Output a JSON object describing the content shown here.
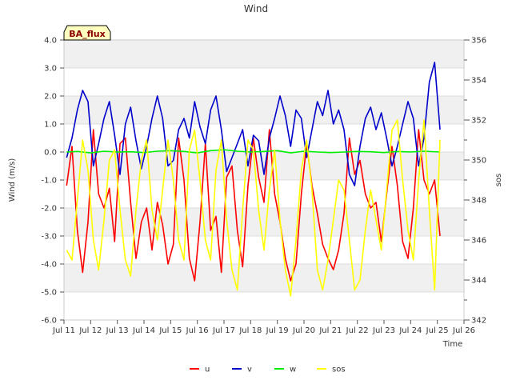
{
  "chart_data": {
    "type": "line",
    "title": "Wind",
    "badge": "BA_flux",
    "xlabel": "Time",
    "ylabel": "Wind (m/s)",
    "y2label": "sos",
    "xlim": [
      11,
      26
    ],
    "ylim": [
      -6,
      4
    ],
    "y2lim": [
      342,
      356
    ],
    "grid": true,
    "legend_position": "bottom-center",
    "x_ticks": [
      {
        "v": 11,
        "label": "Jul 11"
      },
      {
        "v": 12,
        "label": "Jul 12"
      },
      {
        "v": 13,
        "label": "Jul 13"
      },
      {
        "v": 14,
        "label": "Jul 14"
      },
      {
        "v": 15,
        "label": "Jul 15"
      },
      {
        "v": 16,
        "label": "Jul 16"
      },
      {
        "v": 17,
        "label": "Jul 17"
      },
      {
        "v": 18,
        "label": "Jul 18"
      },
      {
        "v": 19,
        "label": "Jul 19"
      },
      {
        "v": 20,
        "label": "Jul 20"
      },
      {
        "v": 21,
        "label": "Jul 21"
      },
      {
        "v": 22,
        "label": "Jul 22"
      },
      {
        "v": 23,
        "label": "Jul 23"
      },
      {
        "v": 24,
        "label": "Jul 24"
      },
      {
        "v": 25,
        "label": "Jul 25"
      },
      {
        "v": 26,
        "label": "Jul 26"
      }
    ],
    "y_ticks": [
      {
        "v": 4,
        "label": "4.0"
      },
      {
        "v": 3,
        "label": "3.0"
      },
      {
        "v": 2,
        "label": "2.0"
      },
      {
        "v": 1,
        "label": "1.0"
      },
      {
        "v": 0,
        "label": "0.0"
      },
      {
        "v": -1,
        "label": "-1.0"
      },
      {
        "v": -2,
        "label": "-2.0"
      },
      {
        "v": -3,
        "label": "-3.0"
      },
      {
        "v": -4,
        "label": "-4.0"
      },
      {
        "v": -5,
        "label": "-5.0"
      },
      {
        "v": -6,
        "label": "-6.0"
      }
    ],
    "y2_ticks": [
      {
        "v": 356,
        "label": "356"
      },
      {
        "v": 354,
        "label": "354"
      },
      {
        "v": 352,
        "label": "352"
      },
      {
        "v": 350,
        "label": "350"
      },
      {
        "v": 348,
        "label": "348"
      },
      {
        "v": 346,
        "label": "346"
      },
      {
        "v": 344,
        "label": "344"
      },
      {
        "v": 342,
        "label": "342"
      }
    ],
    "series": [
      {
        "name": "u",
        "color": "#ff0000",
        "axis": "left",
        "x": [
          11.1,
          11.3,
          11.5,
          11.7,
          11.9,
          12.1,
          12.3,
          12.5,
          12.7,
          12.9,
          13.1,
          13.3,
          13.5,
          13.7,
          13.9,
          14.1,
          14.3,
          14.5,
          14.7,
          14.9,
          15.1,
          15.3,
          15.5,
          15.7,
          15.9,
          16.1,
          16.3,
          16.5,
          16.7,
          16.9,
          17.1,
          17.3,
          17.5,
          17.7,
          17.9,
          18.1,
          18.3,
          18.5,
          18.7,
          18.9,
          19.1,
          19.3,
          19.5,
          19.7,
          19.9,
          20.1,
          20.3,
          20.5,
          20.7,
          20.9,
          21.1,
          21.3,
          21.5,
          21.7,
          21.9,
          22.1,
          22.3,
          22.5,
          22.7,
          22.9,
          23.1,
          23.3,
          23.5,
          23.7,
          23.9,
          24.1,
          24.3,
          24.5,
          24.7,
          24.9,
          25.1
        ],
        "y": [
          -1.2,
          0.2,
          -2.8,
          -4.3,
          -2.5,
          0.8,
          -1.5,
          -2.0,
          -1.3,
          -3.2,
          0.3,
          0.5,
          -1.8,
          -3.8,
          -2.5,
          -2.0,
          -3.5,
          -1.8,
          -2.6,
          -4.0,
          -3.3,
          0.5,
          -1.0,
          -3.8,
          -4.6,
          -2.5,
          0.3,
          -2.8,
          -2.3,
          -4.3,
          -0.9,
          -0.5,
          -2.8,
          -4.1,
          -1.2,
          0.5,
          -0.9,
          -1.8,
          0.8,
          -1.5,
          -2.5,
          -3.8,
          -4.6,
          -4.0,
          -1.5,
          0.3,
          -1.2,
          -2.2,
          -3.3,
          -3.8,
          -4.2,
          -3.5,
          -2.2,
          0.5,
          -0.8,
          -0.3,
          -1.5,
          -2.0,
          -1.8,
          -3.2,
          -1.5,
          0.2,
          -1.2,
          -3.2,
          -3.8,
          -2.0,
          0.8,
          -1.0,
          -1.5,
          -1.0,
          -3.0
        ]
      },
      {
        "name": "v",
        "color": "#0000cc",
        "axis": "left",
        "x": [
          11.1,
          11.3,
          11.5,
          11.7,
          11.9,
          12.1,
          12.3,
          12.5,
          12.7,
          12.9,
          13.1,
          13.3,
          13.5,
          13.7,
          13.9,
          14.1,
          14.3,
          14.5,
          14.7,
          14.9,
          15.1,
          15.3,
          15.5,
          15.7,
          15.9,
          16.1,
          16.3,
          16.5,
          16.7,
          16.9,
          17.1,
          17.3,
          17.5,
          17.7,
          17.9,
          18.1,
          18.3,
          18.5,
          18.7,
          18.9,
          19.1,
          19.3,
          19.5,
          19.7,
          19.9,
          20.1,
          20.3,
          20.5,
          20.7,
          20.9,
          21.1,
          21.3,
          21.5,
          21.7,
          21.9,
          22.1,
          22.3,
          22.5,
          22.7,
          22.9,
          23.1,
          23.3,
          23.5,
          23.7,
          23.9,
          24.1,
          24.3,
          24.5,
          24.7,
          24.9,
          25.1
        ],
        "y": [
          -0.2,
          0.5,
          1.5,
          2.2,
          1.8,
          -0.5,
          0.3,
          1.2,
          1.8,
          0.6,
          -0.8,
          1.0,
          1.6,
          0.4,
          -0.6,
          0.2,
          1.2,
          2.0,
          1.2,
          -0.5,
          -0.3,
          0.8,
          1.2,
          0.5,
          1.8,
          0.9,
          0.3,
          1.5,
          2.0,
          0.8,
          -0.7,
          -0.2,
          0.3,
          0.8,
          -0.5,
          0.6,
          0.4,
          -0.8,
          0.5,
          1.2,
          2.0,
          1.3,
          0.2,
          1.5,
          1.2,
          -0.2,
          0.8,
          1.8,
          1.3,
          2.2,
          1.0,
          1.5,
          0.8,
          -0.8,
          -1.2,
          0.2,
          1.2,
          1.6,
          0.8,
          1.4,
          0.5,
          -0.5,
          0.2,
          1.0,
          1.8,
          1.2,
          -0.5,
          0.5,
          2.5,
          3.2,
          0.8
        ]
      },
      {
        "name": "w",
        "color": "#00ee00",
        "axis": "left",
        "x": [
          11.1,
          11.5,
          12.0,
          12.5,
          13.0,
          13.5,
          14.0,
          14.5,
          15.0,
          15.5,
          16.0,
          16.5,
          17.0,
          17.5,
          18.0,
          18.5,
          19.0,
          19.5,
          20.0,
          20.5,
          21.0,
          21.5,
          22.0,
          22.5,
          23.0,
          23.5,
          24.0,
          24.5,
          25.1
        ],
        "y": [
          0.0,
          0.02,
          -0.03,
          0.03,
          0.0,
          0.01,
          -0.02,
          0.03,
          0.05,
          0.02,
          -0.03,
          0.05,
          0.08,
          0.03,
          0.0,
          0.02,
          0.05,
          -0.03,
          0.03,
          0.0,
          -0.02,
          0.0,
          0.02,
          0.01,
          -0.02,
          0.02,
          0.0,
          0.03,
          0.0
        ]
      },
      {
        "name": "sos",
        "color": "#ffff00",
        "axis": "right",
        "x": [
          11.1,
          11.3,
          11.5,
          11.7,
          11.9,
          12.1,
          12.3,
          12.5,
          12.7,
          12.9,
          13.1,
          13.3,
          13.5,
          13.7,
          13.9,
          14.1,
          14.3,
          14.5,
          14.7,
          14.9,
          15.1,
          15.3,
          15.5,
          15.7,
          15.9,
          16.1,
          16.3,
          16.5,
          16.7,
          16.9,
          17.1,
          17.3,
          17.5,
          17.7,
          17.9,
          18.1,
          18.3,
          18.5,
          18.7,
          18.9,
          19.1,
          19.3,
          19.5,
          19.7,
          19.9,
          20.1,
          20.3,
          20.5,
          20.7,
          20.9,
          21.1,
          21.3,
          21.5,
          21.7,
          21.9,
          22.1,
          22.3,
          22.5,
          22.7,
          22.9,
          23.1,
          23.3,
          23.5,
          23.7,
          23.9,
          24.1,
          24.3,
          24.5,
          24.7,
          24.9,
          25.1
        ],
        "y": [
          345.5,
          345.0,
          348.0,
          351.0,
          349.5,
          346.0,
          344.5,
          347.0,
          350.0,
          350.5,
          347.5,
          345.0,
          344.2,
          347.5,
          350.0,
          351.0,
          347.5,
          346.0,
          348.5,
          351.0,
          349.0,
          346.0,
          345.0,
          350.5,
          351.5,
          349.0,
          346.0,
          345.0,
          349.5,
          351.0,
          347.0,
          344.5,
          343.5,
          347.5,
          351.0,
          350.5,
          347.5,
          345.5,
          348.5,
          350.5,
          347.0,
          344.5,
          343.2,
          346.0,
          349.5,
          351.0,
          348.5,
          344.5,
          343.5,
          345.0,
          347.0,
          349.0,
          348.5,
          346.0,
          343.5,
          344.0,
          346.5,
          348.5,
          347.0,
          345.5,
          348.5,
          351.5,
          352.0,
          349.0,
          346.5,
          345.0,
          349.0,
          352.0,
          347.5,
          343.5,
          351.0
        ]
      }
    ]
  }
}
